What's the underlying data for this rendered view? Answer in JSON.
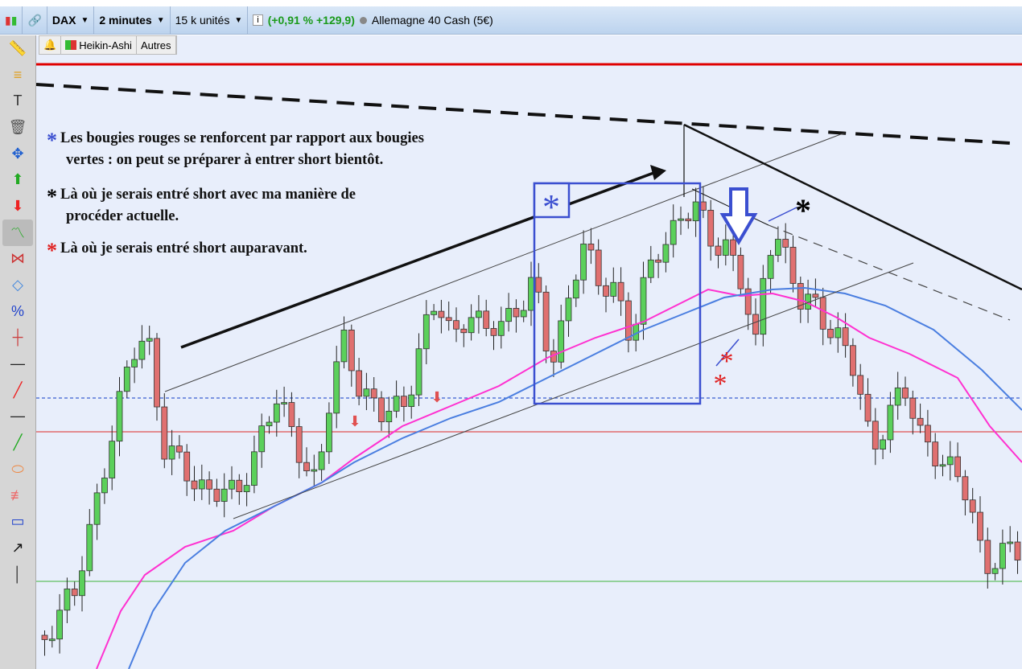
{
  "toolbar": {
    "symbol": "DAX",
    "timeframe": "2 minutes",
    "units": "15 k unités",
    "change": "(+0,91 % +129,9)",
    "instrument": "Allemagne 40 Cash (5€)",
    "change_color": "#1a9a1a"
  },
  "subbar": {
    "chart_type": "Heikin-Ashi",
    "other": "Autres"
  },
  "sidebar": {
    "tools": [
      "ruler-icon",
      "horizontal-line-icon",
      "text-icon",
      "trash-icon",
      "move-icon",
      "buy-arrow-icon",
      "sell-arrow-icon",
      "channel-icon",
      "triangle-icon",
      "rectangle-rotate-icon",
      "percent-icon",
      "range-icon",
      "horizontal-line-black-icon",
      "trend-line-red-icon",
      "line-icon",
      "trend-line-green-icon",
      "ellipse-icon",
      "fibonacci-icon",
      "rectangle-icon",
      "arrow-icon",
      "vertical-line-icon"
    ]
  },
  "annotations": {
    "note1": {
      "star": "*",
      "line1": "Les bougies rouges se renforcent par rapport aux bougies",
      "line2": "vertes : on peut se préparer à entrer short bientôt.",
      "color": "#3b4fd0"
    },
    "note2": {
      "star": "*",
      "line1": "Là où je serais entré short avec ma manière de",
      "line2": "procéder actuelle.",
      "color": "#000000"
    },
    "note3": {
      "star": "*",
      "line1": "Là où je serais entré short auparavant.",
      "color": "#e02020"
    }
  },
  "colors": {
    "up": "#5bd05b",
    "down": "#e07070",
    "ma_fast": "#ff30d0",
    "ma_slow": "#4a7ee0",
    "resistance": "#e00000",
    "box": "#3b4fd0"
  }
}
